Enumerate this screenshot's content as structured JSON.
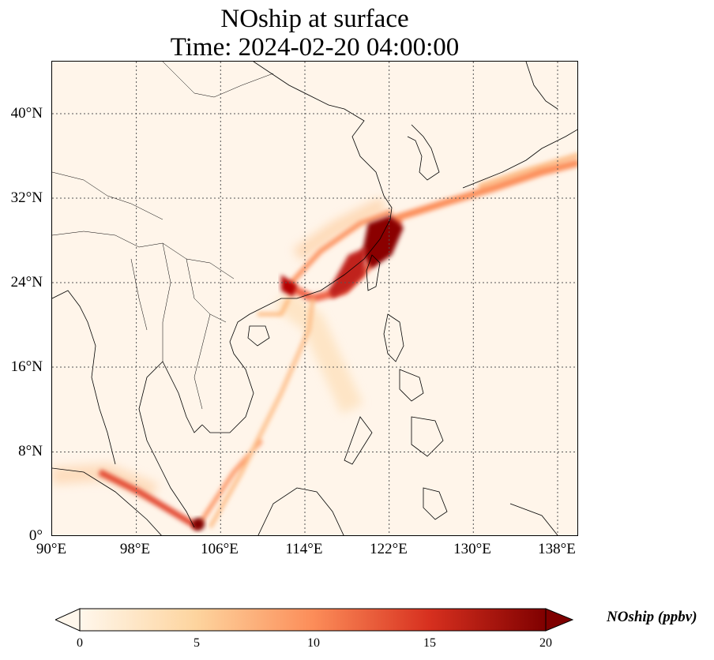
{
  "title": {
    "line1": "NOship at surface",
    "line2": "Time: 2024-02-20 04:00:00"
  },
  "map": {
    "lon_range": [
      90,
      139
    ],
    "lat_range": [
      0,
      44
    ],
    "x_ticks": [
      "90°E",
      "98°E",
      "106°E",
      "114°E",
      "122°E",
      "130°E",
      "138°E"
    ],
    "y_ticks": [
      "0°",
      "8°N",
      "16°N",
      "24°N",
      "32°N",
      "40°N"
    ],
    "gridlines": "dotted",
    "variable": "NOship",
    "colormap": "OrRd",
    "features": [
      "coastlines",
      "country borders"
    ]
  },
  "colorbar": {
    "label": "NOship (ppbv)",
    "ticks": [
      "0",
      "5",
      "10",
      "15",
      "20"
    ],
    "range": [
      0,
      20
    ],
    "extend": "both",
    "colors": [
      "#fff7ec",
      "#fdd49e",
      "#fc8d59",
      "#d7301f",
      "#7f0000"
    ]
  }
}
